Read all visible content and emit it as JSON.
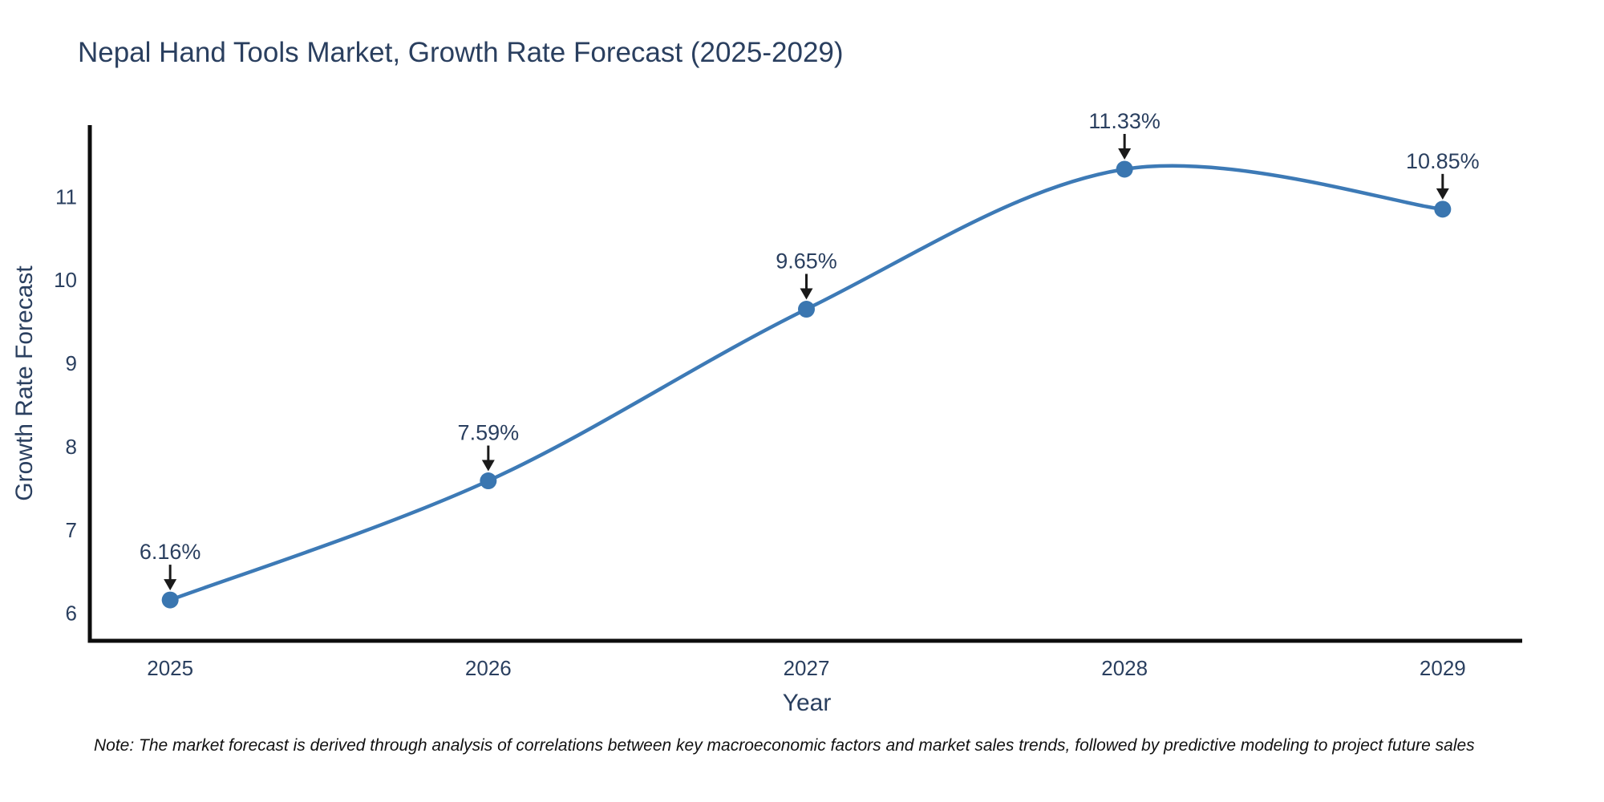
{
  "chart_data": {
    "type": "line",
    "title": "Nepal Hand Tools Market, Growth Rate Forecast (2025-2029)",
    "xlabel": "Year",
    "ylabel": "Growth Rate Forecast",
    "x": [
      2025,
      2026,
      2027,
      2028,
      2029
    ],
    "series": [
      {
        "name": "Growth Rate Forecast",
        "values": [
          6.16,
          7.59,
          9.65,
          11.33,
          10.85
        ]
      }
    ],
    "point_labels": [
      "6.16%",
      "7.59%",
      "9.65%",
      "11.33%",
      "10.85%"
    ],
    "xticks": [
      "2025",
      "2026",
      "2027",
      "2028",
      "2029"
    ],
    "yticks": [
      6,
      7,
      8,
      9,
      10,
      11
    ],
    "xlim": [
      2024.75,
      2029.25
    ],
    "ylim": [
      5.67,
      11.84
    ],
    "line_shape": "spline",
    "grid": false,
    "legend": "none",
    "colors": {
      "line": "#3d7ab6",
      "marker": "#3a76b0",
      "axis": "#0d0d0d",
      "text": "#2a3f5f",
      "annotation_arrow": "#1a1a1a",
      "background": "#ffffff"
    }
  },
  "footnote": "Note: The market forecast is derived through analysis of correlations between key macroeconomic factors and market sales trends, followed by predictive modeling to project future sales"
}
